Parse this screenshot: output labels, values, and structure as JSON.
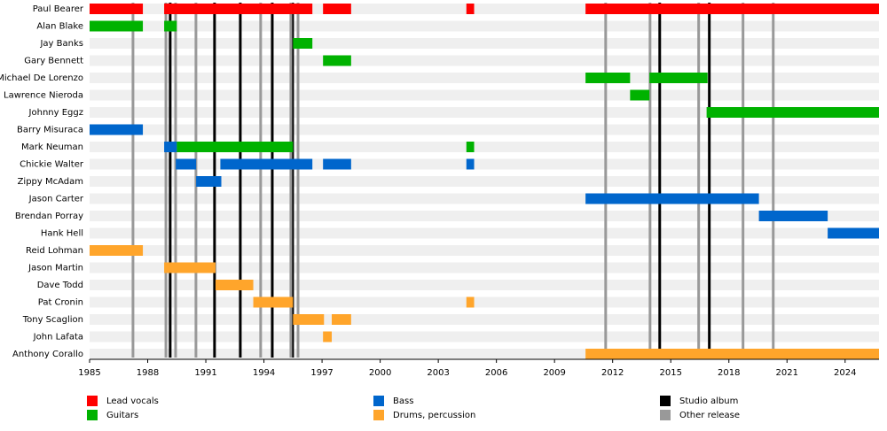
{
  "chart_data": {
    "type": "timeline",
    "categories": [
      "Paul Bearer",
      "Alan Blake",
      "Jay Banks",
      "Gary Bennett",
      "Michael De Lorenzo",
      "Lawrence Nieroda",
      "Johnny Eggz",
      "Barry Misuraca",
      "Mark Neuman",
      "Chickie Walter",
      "Zippy McAdam",
      "Jason Carter",
      "Brendan Porray",
      "Hank Hell",
      "Reid Lohman",
      "Jason Martin",
      "Dave Todd",
      "Pat Cronin",
      "Tony Scaglion",
      "John Lafata",
      "Anthony Corallo"
    ],
    "series": [
      {
        "name": "Lead vocals",
        "color": "#ff0000",
        "values": [
          [
            [
              1985,
              1987.75
            ],
            [
              1988.85,
              1996.5
            ],
            [
              1997.05,
              1998.5
            ],
            [
              2004.45,
              2004.85
            ],
            [
              2010.6,
              2025.75
            ]
          ],
          [],
          [],
          [],
          [],
          [],
          [],
          [],
          [],
          [],
          [],
          [],
          [],
          [],
          [],
          [],
          [],
          [],
          [],
          [],
          []
        ]
      },
      {
        "name": "Guitars",
        "color": "#00b200",
        "values": [
          [],
          [
            [
              1985,
              1987.75
            ],
            [
              1988.85,
              1989.5
            ]
          ],
          [
            [
              1995.5,
              1996.5
            ]
          ],
          [
            [
              1997.05,
              1998.5
            ]
          ],
          [
            [
              2010.6,
              2012.9
            ],
            [
              2013.9,
              2016.9
            ]
          ],
          [
            [
              2012.9,
              2013.9
            ]
          ],
          [
            [
              2016.85,
              2025.75
            ]
          ],
          [],
          [
            [
              1989.5,
              1995.5
            ],
            [
              2004.45,
              2004.85
            ]
          ],
          [],
          [],
          [],
          [],
          [],
          [],
          [],
          [],
          [],
          [],
          [],
          []
        ]
      },
      {
        "name": "Bass",
        "color": "#0066cc",
        "values": [
          [],
          [],
          [],
          [],
          [],
          [],
          [],
          [
            [
              1985,
              1987.75
            ]
          ],
          [
            [
              1988.85,
              1989.5
            ]
          ],
          [
            [
              1989.45,
              1990.5
            ],
            [
              1991.75,
              1996.5
            ],
            [
              1997.05,
              1998.5
            ],
            [
              2004.45,
              2004.85
            ]
          ],
          [
            [
              1990.5,
              1991.8
            ]
          ],
          [
            [
              2010.6,
              2019.55
            ]
          ],
          [
            [
              2019.55,
              2023.1
            ]
          ],
          [
            [
              2023.1,
              2025.75
            ]
          ],
          [],
          [],
          [],
          [],
          [],
          [],
          []
        ]
      },
      {
        "name": "Drums, percussion",
        "color": "#ffa52b",
        "values": [
          [],
          [],
          [],
          [],
          [],
          [],
          [],
          [],
          [],
          [],
          [],
          [],
          [],
          [],
          [
            [
              1985,
              1987.75
            ]
          ],
          [
            [
              1988.85,
              1991.5
            ]
          ],
          [
            [
              1991.5,
              1993.45
            ]
          ],
          [
            [
              1993.45,
              1995.5
            ],
            [
              2004.45,
              2004.85
            ]
          ],
          [
            [
              1995.5,
              1997.1
            ],
            [
              1997.5,
              1998.5
            ]
          ],
          [
            [
              1997.05,
              1997.5
            ]
          ],
          [
            [
              2010.6,
              2025.75
            ]
          ]
        ]
      }
    ],
    "releases": [
      {
        "name": "Studio album",
        "color": "#000000",
        "x": [
          1989.16,
          1991.45,
          1992.78,
          1994.43,
          1995.48,
          2014.43,
          2016.99
        ]
      },
      {
        "name": "Other release",
        "color": "#999999",
        "x": [
          1987.24,
          1988.94,
          1989.44,
          1990.49,
          1993.83,
          1995.39,
          1995.76,
          2011.64,
          2013.93,
          2016.44,
          2018.73,
          2020.29
        ]
      }
    ],
    "xlim": [
      1985,
      2025.75
    ],
    "xticks": [
      1985,
      1988,
      1991,
      1994,
      1997,
      2000,
      2003,
      2006,
      2009,
      2012,
      2015,
      2018,
      2021,
      2024
    ]
  }
}
